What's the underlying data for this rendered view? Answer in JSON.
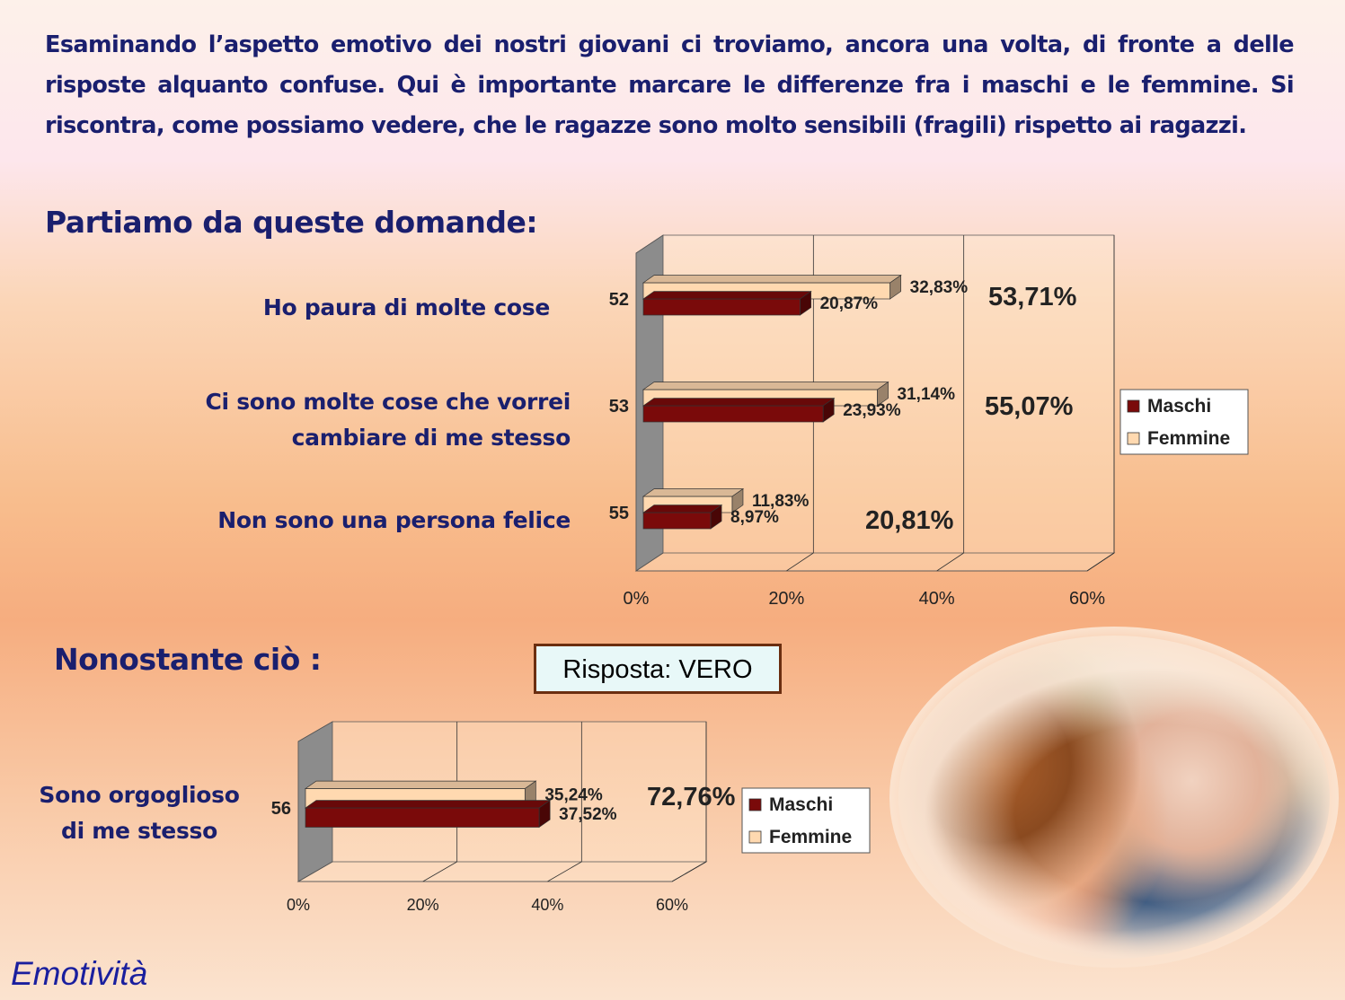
{
  "intro": "Esaminando l’aspetto emotivo dei nostri giovani ci troviamo, ancora una volta, di fronte a delle risposte alquanto confuse. Qui è importante marcare le differenze fra i maschi e le femmine. Si riscontra, come possiamo vedere, che le ragazze sono molto sensibili (fragili) rispetto ai ragazzi.",
  "heading1": "Partiamo da queste domande:",
  "heading2": "Nonostante ciò :",
  "risposta": "Risposta:  VERO",
  "footer": "Emotività",
  "questions": {
    "q52": "Ho paura di molte cose",
    "q53_line1": "Ci sono molte cose che vorrei",
    "q53_line2": "cambiare di me stesso",
    "q55": "Non sono una persona felice",
    "q56_line1": "Sono orgoglioso",
    "q56_line2": "di me stesso"
  },
  "colors": {
    "maschi": "#7a0a0a",
    "femmine": "#ffd9b0",
    "text_blue": "#1a1f6e",
    "wall": "#8c8c8c"
  },
  "chart_data": [
    {
      "type": "bar",
      "orientation": "horizontal",
      "categories": [
        "52",
        "53",
        "55"
      ],
      "series": [
        {
          "name": "Maschi",
          "values": [
            20.87,
            23.93,
            8.97
          ],
          "labels": [
            "20,87%",
            "23,93%",
            "8,97%"
          ]
        },
        {
          "name": "Femmine",
          "values": [
            32.83,
            31.14,
            11.83
          ],
          "labels": [
            "32,83%",
            "31,14%",
            "11,83%"
          ]
        }
      ],
      "totals": [
        "53,71%",
        "55,07%",
        "20,81%"
      ],
      "xlim": [
        0,
        60
      ],
      "xticks": [
        "0%",
        "20%",
        "40%",
        "60%"
      ],
      "legend": "right",
      "grid": true
    },
    {
      "type": "bar",
      "orientation": "horizontal",
      "categories": [
        "56"
      ],
      "series": [
        {
          "name": "Maschi",
          "values": [
            37.52
          ],
          "labels": [
            "37,52%"
          ]
        },
        {
          "name": "Femmine",
          "values": [
            35.24
          ],
          "labels": [
            "35,24%"
          ]
        }
      ],
      "totals": [
        "72,76%"
      ],
      "xlim": [
        0,
        60
      ],
      "xticks": [
        "0%",
        "20%",
        "40%",
        "60%"
      ],
      "legend": "right",
      "grid": true
    }
  ]
}
